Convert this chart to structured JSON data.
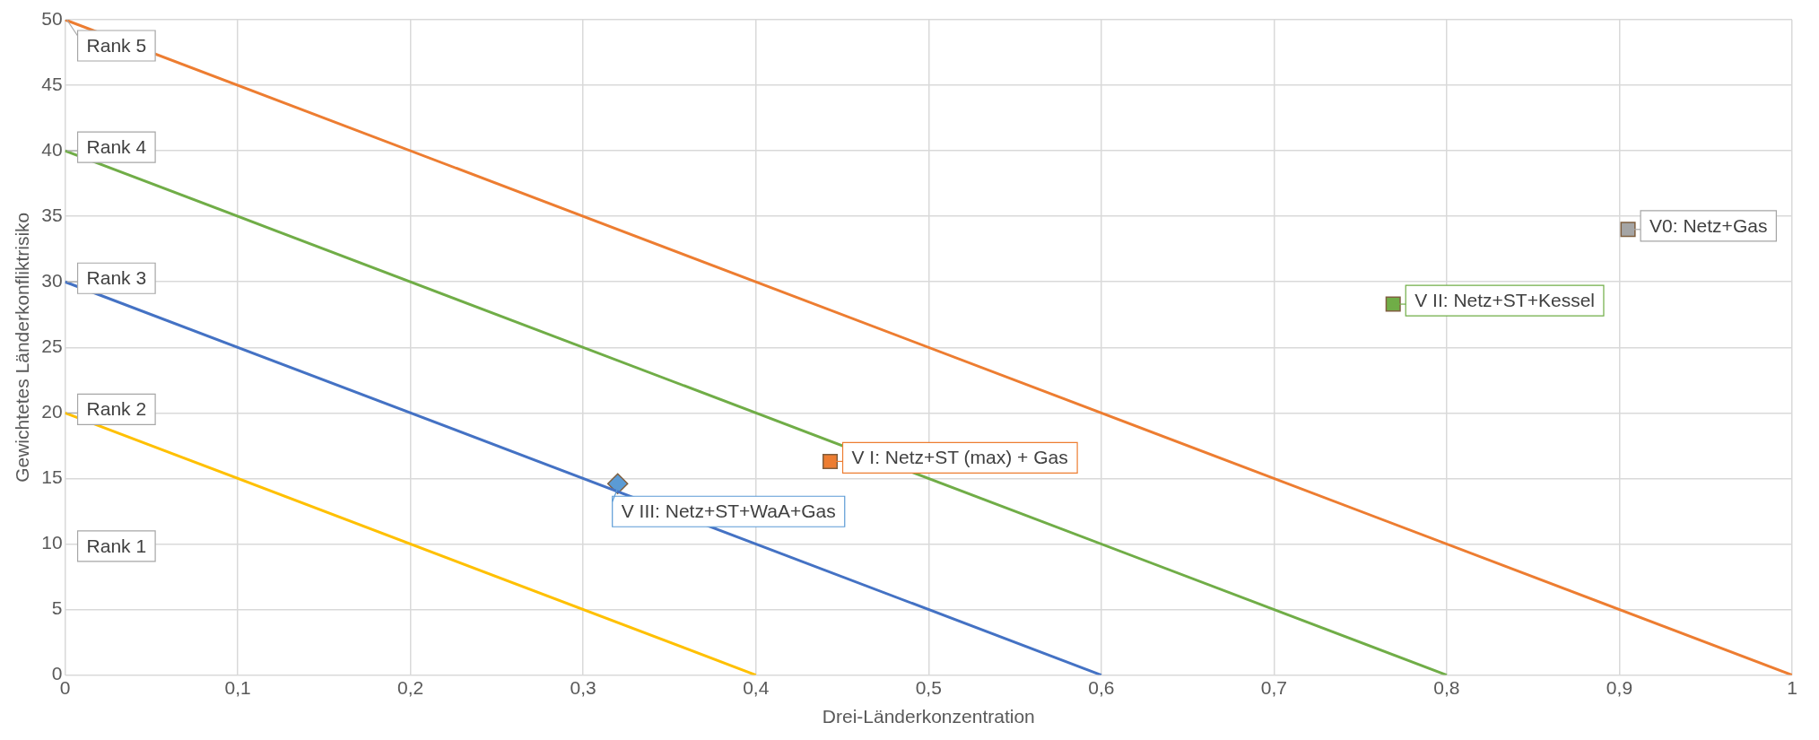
{
  "chart_data": {
    "type": "scatter",
    "xlabel": "Drei-Länderkonzentration",
    "ylabel": "Gewichtetes Länderkonfliktrisiko",
    "xlim": [
      0,
      1
    ],
    "xticks": [
      0,
      {
        "value": 0.1,
        "label": "0,1"
      },
      {
        "value": 0.2,
        "label": "0,2"
      },
      {
        "value": 0.3,
        "label": "0,3"
      },
      {
        "value": 0.4,
        "label": "0,4"
      },
      {
        "value": 0.5,
        "label": "0,5"
      },
      {
        "value": 0.6,
        "label": "0,6"
      },
      {
        "value": 0.7,
        "label": "0,7"
      },
      {
        "value": 0.8,
        "label": "0,8"
      },
      {
        "value": 0.9,
        "label": "0,9"
      },
      1
    ],
    "ylim": [
      0,
      50
    ],
    "yticks": [
      0,
      5,
      10,
      15,
      20,
      25,
      30,
      35,
      40,
      45,
      50
    ],
    "grid": true,
    "legend": "right",
    "series": [
      {
        "name": "Rank 5",
        "type": "line",
        "color": "#ed7d31",
        "x": [
          0,
          1
        ],
        "values": [
          50,
          0
        ],
        "marker": "none"
      },
      {
        "name": "Rank 4",
        "type": "line",
        "color": "#70ad47",
        "x": [
          0,
          0.8
        ],
        "values": [
          40,
          0
        ],
        "marker": "none"
      },
      {
        "name": "Rank 3",
        "type": "line",
        "color": "#4472c4",
        "x": [
          0,
          0.6
        ],
        "values": [
          30,
          0
        ],
        "marker": "none"
      },
      {
        "name": "Rank 2",
        "type": "line",
        "color": "#ffc000",
        "x": [
          0,
          0.4
        ],
        "values": [
          20,
          0
        ],
        "marker": "none"
      },
      {
        "name": "V0: Netz+Gas",
        "color": "#a5a5a5",
        "x": [
          0.905
        ],
        "values": [
          34
        ],
        "marker": "square"
      },
      {
        "name": "V II: Netz+ST+Kessel",
        "color": "#70ad47",
        "x": [
          0.769
        ],
        "values": [
          28.3
        ],
        "marker": "square"
      },
      {
        "name": "V I: Netz+ST (max) + Gas",
        "color": "#ed7d31",
        "x": [
          0.443
        ],
        "values": [
          16.3
        ],
        "marker": "square"
      },
      {
        "name": "V III: Netz+ST+WaA+Gas",
        "color": "#5b9bd5",
        "x": [
          0.32
        ],
        "values": [
          14.6
        ],
        "marker": "diamond"
      }
    ],
    "annotations": [
      "Rank 1"
    ]
  }
}
